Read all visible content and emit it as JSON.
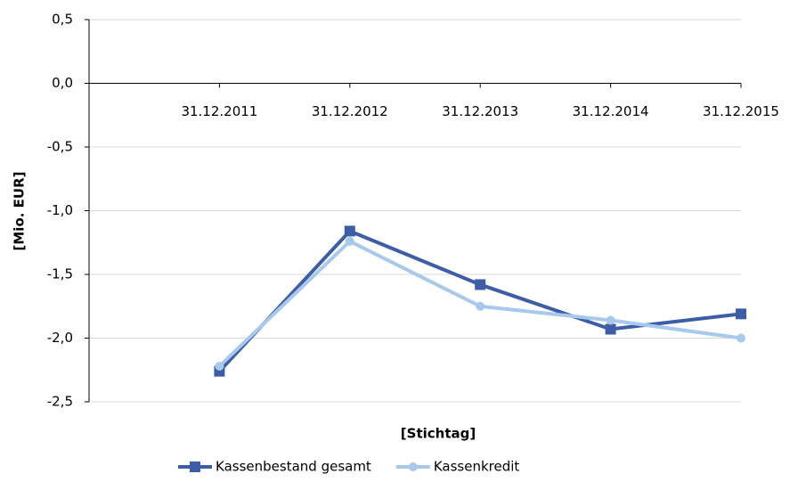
{
  "chart_data": {
    "type": "line",
    "xlabel": "[Stichtag]",
    "ylabel": "[Mio. EUR]",
    "categories": [
      null,
      "31.12.2011",
      "31.12.2012",
      "31.12.2013",
      "31.12.2014",
      "31.12.2015"
    ],
    "series": [
      {
        "name": "Kassenbestand gesamt",
        "color": "#3d5ea6",
        "marker": "square",
        "values": [
          null,
          -2.26,
          -1.16,
          -1.58,
          -1.93,
          -1.81
        ]
      },
      {
        "name": "Kassenkredit",
        "color": "#a7c9ec",
        "marker": "circle",
        "values": [
          null,
          -2.22,
          -1.24,
          -1.75,
          -1.86,
          -2.0
        ]
      }
    ],
    "ylim": [
      -2.5,
      0.5
    ],
    "yticks": [
      {
        "value": -2.5,
        "label": "-2,5"
      },
      {
        "value": -2.0,
        "label": "-2,0"
      },
      {
        "value": -1.5,
        "label": "-1,5"
      },
      {
        "value": -1.0,
        "label": "-1,0"
      },
      {
        "value": -0.5,
        "label": "-0,5"
      },
      {
        "value": 0,
        "label": "0,0"
      },
      {
        "value": 0.5,
        "label": "0,5"
      }
    ],
    "grid": true,
    "legend": "bottom"
  }
}
